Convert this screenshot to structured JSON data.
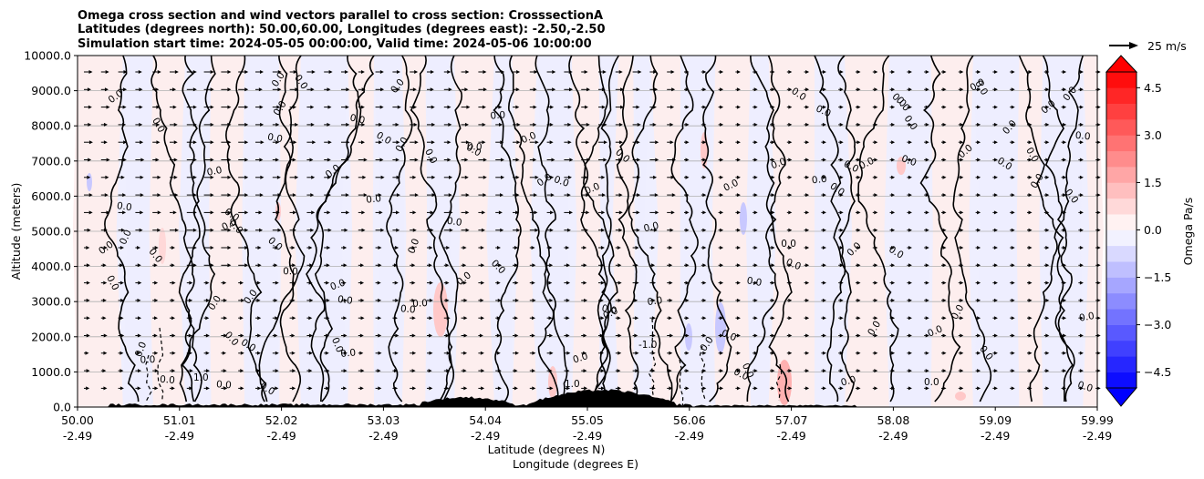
{
  "chart_data": {
    "type": "contour",
    "title_lines": [
      "Omega cross section and wind vectors parallel to cross section: CrosssectionA",
      "Latitudes (degrees north): 50.00,60.00, Longitudes (degrees east): -2.50,-2.50",
      "Simulation start time: 2024-05-05 00:00:00, Valid time: 2024-05-06 10:00:00"
    ],
    "ylabel": "Altitude (meters)",
    "xlabel_lines": [
      "Latitude (degrees N)",
      "Longitude (degrees E)"
    ],
    "ylim": [
      0,
      10000
    ],
    "xlim": [
      50.0,
      59.99
    ],
    "y_ticks": [
      0,
      1000,
      2000,
      3000,
      4000,
      5000,
      6000,
      7000,
      8000,
      9000,
      10000
    ],
    "y_tick_labels": [
      "0.0",
      "1000.0",
      "2000.0",
      "3000.0",
      "4000.0",
      "5000.0",
      "6000.0",
      "7000.0",
      "8000.0",
      "9000.0",
      "10000.0"
    ],
    "x_ticks": [
      {
        "lat": "50.00",
        "lon": "-2.49"
      },
      {
        "lat": "51.01",
        "lon": "-2.49"
      },
      {
        "lat": "52.02",
        "lon": "-2.49"
      },
      {
        "lat": "53.03",
        "lon": "-2.49"
      },
      {
        "lat": "54.04",
        "lon": "-2.49"
      },
      {
        "lat": "55.05",
        "lon": "-2.49"
      },
      {
        "lat": "56.06",
        "lon": "-2.49"
      },
      {
        "lat": "57.07",
        "lon": "-2.49"
      },
      {
        "lat": "58.08",
        "lon": "-2.49"
      },
      {
        "lat": "59.09",
        "lon": "-2.49"
      },
      {
        "lat": "59.99",
        "lon": "-2.49"
      }
    ],
    "contour_label": "0.0",
    "contour_labels_extra": [
      "-1.0",
      "1.0"
    ],
    "colorbar": {
      "label": "Omega Pa/s",
      "min": -5.0,
      "max": 5.0,
      "tick_values": [
        4.5,
        3.0,
        1.5,
        0.0,
        -1.5,
        -3.0,
        -4.5
      ],
      "tick_labels": [
        "4.5",
        "3.0",
        "1.5",
        "0.0",
        "−1.5",
        "−3.0",
        "−4.5"
      ],
      "levels": 20,
      "extend": "both",
      "colors": {
        "neg": "#0000ff",
        "pos": "#ff0000",
        "mid": "#ffffff"
      }
    },
    "quiver_key": {
      "label": "25 m/s",
      "value": 25
    },
    "colors": {
      "terrain": "#000000",
      "grid": "#b0b0b0",
      "contour": "#000000"
    }
  }
}
